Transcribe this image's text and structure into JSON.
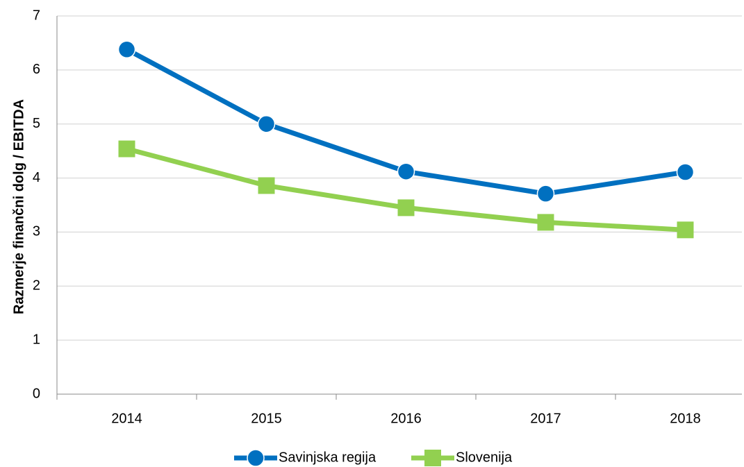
{
  "chart_data": {
    "type": "line",
    "y_label": "Razmerje finančni dolg / EBITDA",
    "categories": [
      "2014",
      "2015",
      "2016",
      "2017",
      "2018"
    ],
    "series": [
      {
        "name": "Savinjska regija",
        "color": "#0070c0",
        "values": [
          6.38,
          5.0,
          4.12,
          3.71,
          4.11
        ]
      },
      {
        "name": "Slovenija",
        "color": "#92d050",
        "values": [
          4.54,
          3.86,
          3.45,
          3.18,
          3.04
        ]
      }
    ],
    "ylim": [
      0,
      7
    ],
    "yticks": [
      0,
      1,
      2,
      3,
      4,
      5,
      6,
      7
    ],
    "grid": true,
    "legend": "bottom"
  }
}
